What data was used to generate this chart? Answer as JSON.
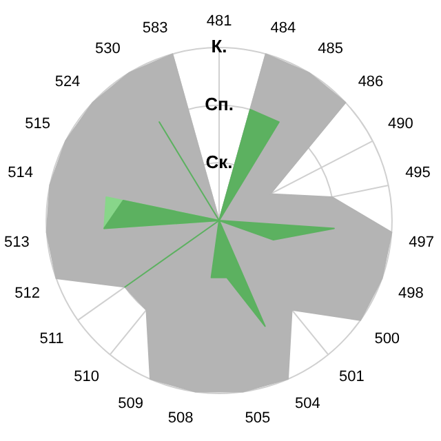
{
  "chart_data": {
    "type": "radar",
    "categories": [
      "481",
      "484",
      "485",
      "486",
      "490",
      "495",
      "497",
      "498",
      "500",
      "501",
      "504",
      "505",
      "508",
      "509",
      "510",
      "511",
      "512",
      "513",
      "514",
      "515",
      "524",
      "530",
      "583"
    ],
    "ylim": [
      0,
      3
    ],
    "yticks": [
      {
        "value": 1,
        "label": "Ск."
      },
      {
        "value": 2,
        "label": "Сп."
      },
      {
        "value": 3,
        "label": "К."
      }
    ],
    "grid": true,
    "legend": false,
    "marker": "none",
    "series": [
      {
        "color": "#b4b4b4",
        "values": [
          0,
          3,
          3,
          3,
          1,
          2,
          3,
          3,
          3,
          2,
          3,
          3,
          3,
          3,
          2,
          2,
          3,
          3,
          3,
          3,
          3,
          3,
          3
        ]
      },
      {
        "color": "#88d68a",
        "values": [
          0,
          0,
          0,
          0,
          0,
          0,
          0,
          0,
          0,
          0,
          0,
          0,
          0,
          0,
          0,
          0,
          0,
          2,
          2,
          0,
          0,
          0,
          0
        ]
      },
      {
        "color": "#5cb160",
        "values": [
          0,
          2,
          2,
          0,
          0,
          0,
          2,
          1,
          0,
          0,
          2,
          1,
          1,
          0,
          0,
          2,
          0,
          2,
          1.7,
          0,
          0,
          2,
          0
        ]
      }
    ]
  }
}
